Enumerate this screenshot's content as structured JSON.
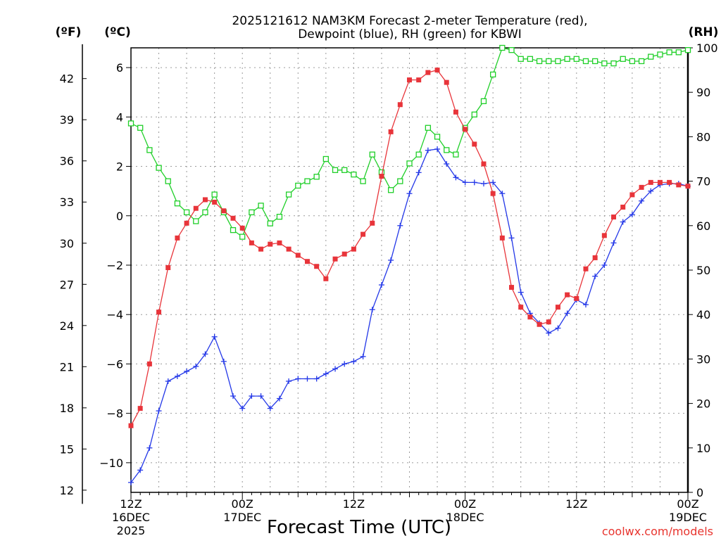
{
  "chart_data": {
    "type": "line",
    "title": [
      "2025121612 NAM3KM Forecast 2-meter Temperature (red),",
      "Dewpoint (blue), RH (green) for KBWI"
    ],
    "xlabel": "Forecast Time (UTC)",
    "credit": "coolwx.com/models",
    "units": {
      "fahrenheit": "(ºF)",
      "celsius": "(ºC)",
      "rh": "(RH)"
    },
    "x_hours": [
      0,
      1,
      2,
      3,
      4,
      5,
      6,
      7,
      8,
      9,
      10,
      11,
      12,
      13,
      14,
      15,
      16,
      17,
      18,
      19,
      20,
      21,
      22,
      23,
      24,
      25,
      26,
      27,
      28,
      29,
      30,
      31,
      32,
      33,
      34,
      35,
      36,
      37,
      38,
      39,
      40,
      41,
      42,
      43,
      44,
      45,
      46,
      47,
      48,
      49,
      50,
      51,
      52,
      53,
      54,
      55,
      56,
      57,
      58,
      59,
      60
    ],
    "xlim": [
      0,
      60
    ],
    "x_ticks": [
      {
        "hour": 0,
        "lines": [
          "12Z",
          "16DEC",
          "2025"
        ]
      },
      {
        "hour": 12,
        "lines": [
          "00Z",
          "17DEC"
        ]
      },
      {
        "hour": 24,
        "lines": [
          "12Z"
        ]
      },
      {
        "hour": 36,
        "lines": [
          "00Z",
          "18DEC"
        ]
      },
      {
        "hour": 48,
        "lines": [
          "12Z"
        ]
      },
      {
        "hour": 60,
        "lines": [
          "00Z",
          "19DEC"
        ]
      }
    ],
    "celsius_axis": {
      "ylim": [
        -11.2,
        6.8
      ],
      "ticks": [
        6,
        4,
        2,
        0,
        -2,
        -4,
        -6,
        -8,
        -10
      ],
      "labels": [
        "6",
        "4",
        "2",
        "0",
        "−2",
        "−4",
        "−6",
        "−8",
        "−10"
      ]
    },
    "fahrenheit_axis": {
      "ticks": [
        42,
        39,
        36,
        33,
        30,
        27,
        24,
        21,
        18,
        15,
        12
      ],
      "labels": [
        "42",
        "39",
        "36",
        "33",
        "30",
        "27",
        "24",
        "21",
        "18",
        "15",
        "12"
      ]
    },
    "rh_axis": {
      "ylim": [
        0,
        100
      ],
      "ticks": [
        100,
        90,
        80,
        70,
        60,
        50,
        40,
        30,
        20,
        10,
        0
      ],
      "labels": [
        "100",
        "90",
        "80",
        "70",
        "60",
        "50",
        "40",
        "30",
        "20",
        "10",
        "0"
      ]
    },
    "series": [
      {
        "name": "2-meter Temperature (C)",
        "axis": "celsius",
        "color": "#e8343a",
        "marker": "filled-square",
        "values": [
          -8.5,
          -7.8,
          -6.0,
          -3.9,
          -2.1,
          -0.9,
          -0.3,
          0.3,
          0.65,
          0.55,
          0.2,
          -0.1,
          -0.5,
          -1.1,
          -1.35,
          -1.15,
          -1.1,
          -1.35,
          -1.6,
          -1.85,
          -2.05,
          -2.55,
          -1.75,
          -1.55,
          -1.35,
          -0.75,
          -0.3,
          1.6,
          3.4,
          4.5,
          5.5,
          5.5,
          5.8,
          5.9,
          5.4,
          4.2,
          3.5,
          2.9,
          2.1,
          0.9,
          -0.9,
          -2.9,
          -3.7,
          -4.1,
          -4.4,
          -4.3,
          -3.7,
          -3.2,
          -3.35,
          -2.15,
          -1.7,
          -0.8,
          -0.05,
          0.35,
          0.85,
          1.15,
          1.35,
          1.35,
          1.35,
          1.25,
          1.2
        ]
      },
      {
        "name": "Dewpoint (C)",
        "axis": "celsius",
        "color": "#2438e8",
        "marker": "plus",
        "values": [
          -10.8,
          -10.3,
          -9.4,
          -7.9,
          -6.7,
          -6.5,
          -6.3,
          -6.1,
          -5.6,
          -4.9,
          -5.9,
          -7.3,
          -7.8,
          -7.3,
          -7.3,
          -7.8,
          -7.4,
          -6.7,
          -6.6,
          -6.6,
          -6.6,
          -6.4,
          -6.2,
          -6.0,
          -5.9,
          -5.7,
          -3.8,
          -2.8,
          -1.8,
          -0.4,
          0.9,
          1.75,
          2.65,
          2.7,
          2.1,
          1.55,
          1.35,
          1.35,
          1.3,
          1.35,
          0.9,
          -0.9,
          -3.1,
          -3.95,
          -4.35,
          -4.75,
          -4.55,
          -3.95,
          -3.4,
          -3.6,
          -2.45,
          -2.0,
          -1.1,
          -0.25,
          0.05,
          0.6,
          1.0,
          1.25,
          1.3,
          1.3,
          1.2
        ]
      },
      {
        "name": "RH (%)",
        "axis": "rh",
        "color": "#1fcf28",
        "marker": "open-square",
        "values": [
          83,
          82,
          77,
          73,
          70,
          65,
          63,
          61,
          63,
          67,
          63,
          59,
          57.5,
          63,
          64.5,
          60.5,
          62,
          67,
          69,
          70,
          71,
          75,
          72.5,
          72.5,
          71.5,
          70,
          76,
          72,
          68,
          70,
          74,
          76,
          82,
          80,
          77,
          76,
          82,
          85,
          88,
          94,
          100,
          99.5,
          97.5,
          97.5,
          97,
          97,
          97,
          97.5,
          97.5,
          97,
          97,
          96.5,
          96.5,
          97.5,
          97,
          97,
          98,
          98.5,
          99,
          99,
          99.5
        ]
      }
    ]
  }
}
